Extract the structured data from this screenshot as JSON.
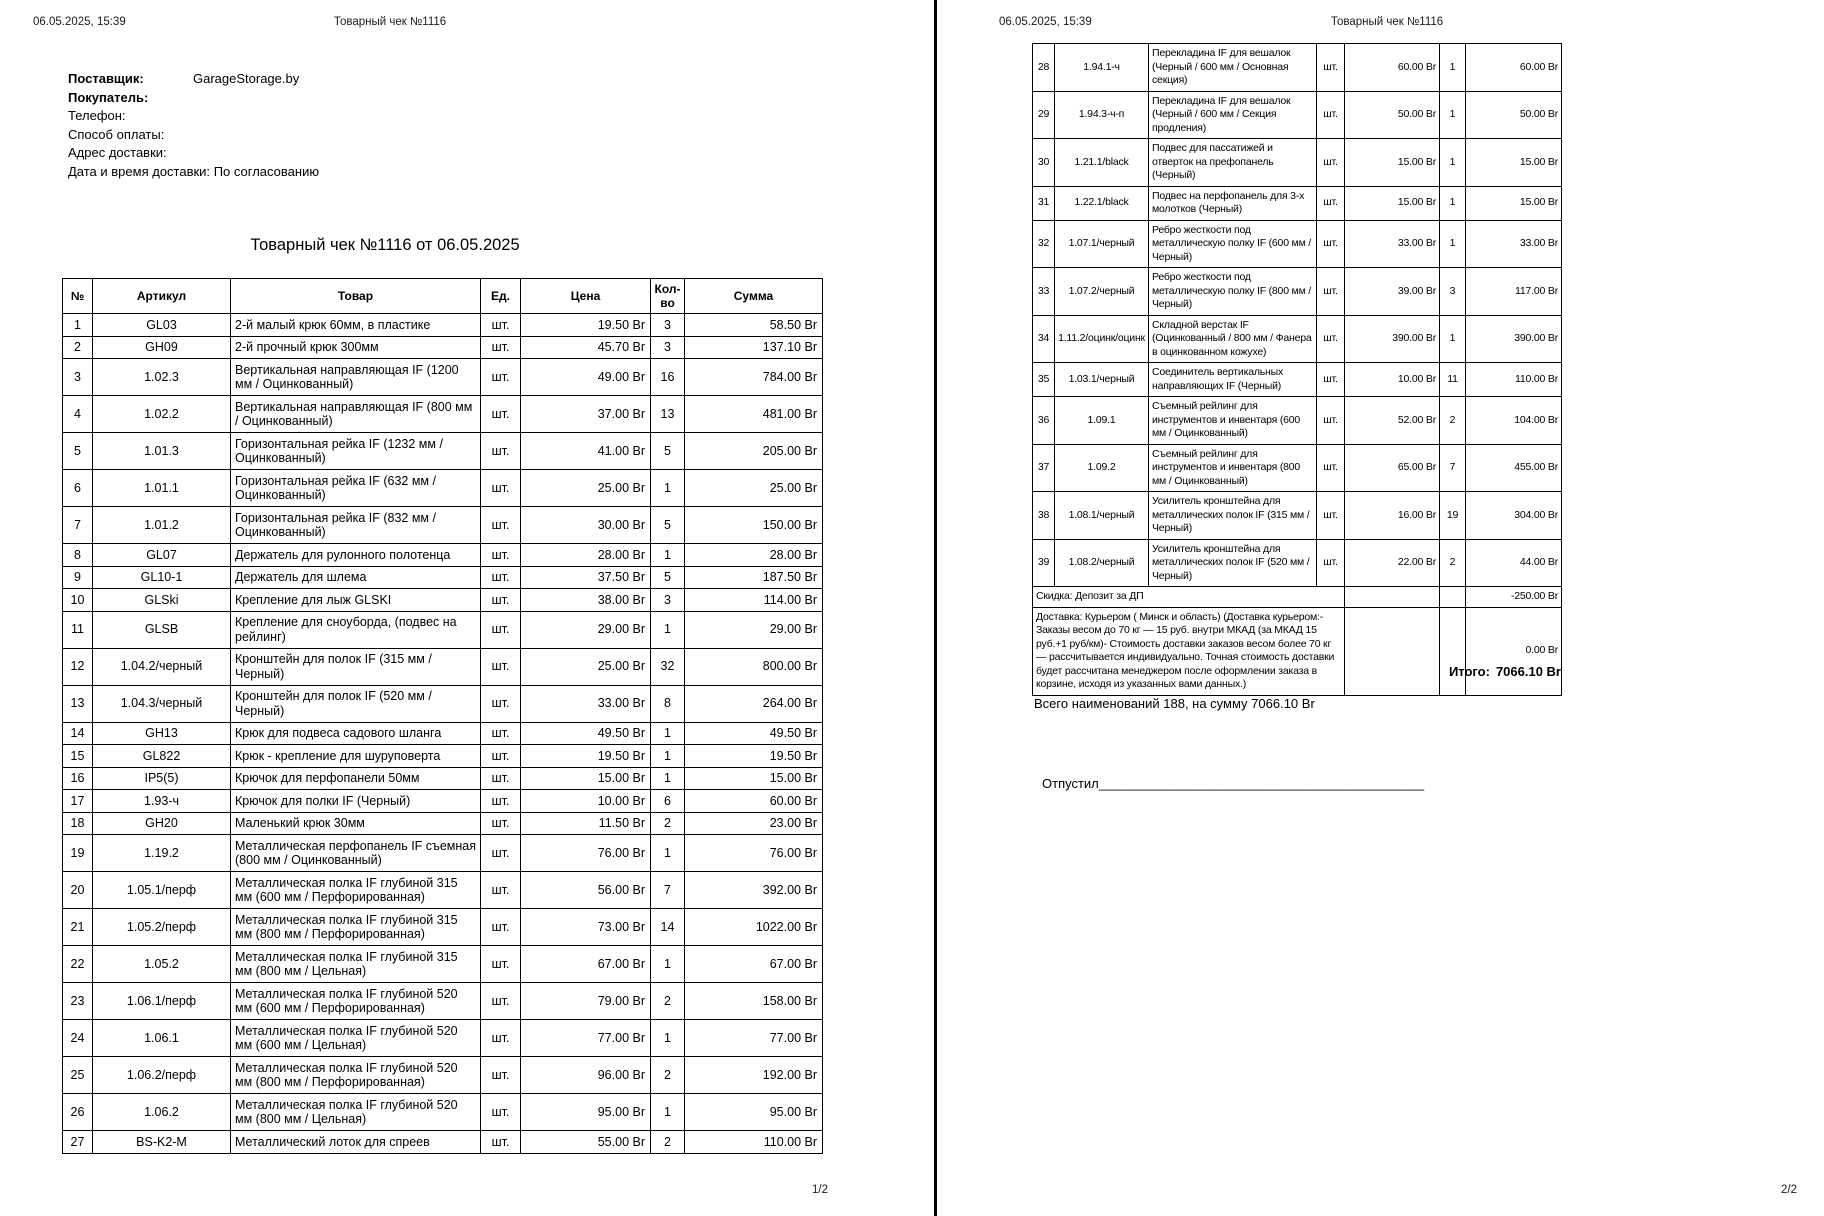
{
  "doc": {
    "datetime": "06.05.2025, 15:39",
    "header_title": "Товарный чек №1116",
    "page1_footer": "1/2",
    "page2_footer": "2/2"
  },
  "info": {
    "supplier_label": "Поставщик:",
    "supplier_value": "GarageStorage.by",
    "buyer_label": "Покупатель:",
    "buyer_value": "",
    "phone_label": "Телефон:",
    "phone_value": "",
    "payment_label": "Способ оплаты:",
    "payment_value": "",
    "address_label": "Адрес доставки:",
    "address_value": "",
    "delivery_dt_label": "Дата и время доставки:",
    "delivery_dt_value": "По согласованию"
  },
  "title": "Товарный чек №1116 от 06.05.2025",
  "table": {
    "headers": [
      "№",
      "Артикул",
      "Товар",
      "Ед.",
      "Цена",
      "Кол-во",
      "Сумма"
    ],
    "rows_page1": [
      [
        "1",
        "GL03",
        "2-й малый крюк 60мм, в пластике",
        "шт.",
        "19.50 Br",
        "3",
        "58.50 Br"
      ],
      [
        "2",
        "GH09",
        "2-й прочный крюк 300мм",
        "шт.",
        "45.70 Br",
        "3",
        "137.10 Br"
      ],
      [
        "3",
        "1.02.3",
        "Вертикальная направляющая IF (1200 мм / Оцинкованный)",
        "шт.",
        "49.00 Br",
        "16",
        "784.00 Br"
      ],
      [
        "4",
        "1.02.2",
        "Вертикальная направляющая IF (800 мм / Оцинкованный)",
        "шт.",
        "37.00 Br",
        "13",
        "481.00 Br"
      ],
      [
        "5",
        "1.01.3",
        "Горизонтальная рейка IF (1232 мм / Оцинкованный)",
        "шт.",
        "41.00 Br",
        "5",
        "205.00 Br"
      ],
      [
        "6",
        "1.01.1",
        "Горизонтальная рейка IF (632 мм / Оцинкованный)",
        "шт.",
        "25.00 Br",
        "1",
        "25.00 Br"
      ],
      [
        "7",
        "1.01.2",
        "Горизонтальная рейка IF (832 мм / Оцинкованный)",
        "шт.",
        "30.00 Br",
        "5",
        "150.00 Br"
      ],
      [
        "8",
        "GL07",
        "Держатель для рулонного полотенца",
        "шт.",
        "28.00 Br",
        "1",
        "28.00 Br"
      ],
      [
        "9",
        "GL10-1",
        "Держатель для шлема",
        "шт.",
        "37.50 Br",
        "5",
        "187.50 Br"
      ],
      [
        "10",
        "GLSki",
        "Крепление для лыж GLSKI",
        "шт.",
        "38.00 Br",
        "3",
        "114.00 Br"
      ],
      [
        "11",
        "GLSB",
        "Крепление для сноуборда, (подвес на рейлинг)",
        "шт.",
        "29.00 Br",
        "1",
        "29.00 Br"
      ],
      [
        "12",
        "1.04.2/черный",
        "Кронштейн для полок IF (315 мм / Черный)",
        "шт.",
        "25.00 Br",
        "32",
        "800.00 Br"
      ],
      [
        "13",
        "1.04.3/черный",
        "Кронштейн для полок IF (520 мм / Черный)",
        "шт.",
        "33.00 Br",
        "8",
        "264.00 Br"
      ],
      [
        "14",
        "GH13",
        "Крюк для подвеса садового шланга",
        "шт.",
        "49.50 Br",
        "1",
        "49.50 Br"
      ],
      [
        "15",
        "GL822",
        "Крюк - крепление для шуруповерта",
        "шт.",
        "19.50 Br",
        "1",
        "19.50 Br"
      ],
      [
        "16",
        "IP5(5)",
        "Крючок для перфопанели 50мм",
        "шт.",
        "15.00 Br",
        "1",
        "15.00 Br"
      ],
      [
        "17",
        "1.93-ч",
        "Крючок для полки IF (Черный)",
        "шт.",
        "10.00 Br",
        "6",
        "60.00 Br"
      ],
      [
        "18",
        "GH20",
        "Маленький крюк 30мм",
        "шт.",
        "11.50 Br",
        "2",
        "23.00 Br"
      ],
      [
        "19",
        "1.19.2",
        "Металлическая перфопанель IF съемная (800 мм / Оцинкованный)",
        "шт.",
        "76.00 Br",
        "1",
        "76.00 Br"
      ],
      [
        "20",
        "1.05.1/перф",
        "Металлическая полка IF глубиной 315 мм (600 мм / Перфорированная)",
        "шт.",
        "56.00 Br",
        "7",
        "392.00 Br"
      ],
      [
        "21",
        "1.05.2/перф",
        "Металлическая полка IF глубиной 315 мм (800 мм / Перфорированная)",
        "шт.",
        "73.00 Br",
        "14",
        "1022.00 Br"
      ],
      [
        "22",
        "1.05.2",
        "Металлическая полка IF глубиной 315 мм (800 мм / Цельная)",
        "шт.",
        "67.00 Br",
        "1",
        "67.00 Br"
      ],
      [
        "23",
        "1.06.1/перф",
        "Металлическая полка IF глубиной 520 мм (600 мм / Перфорированная)",
        "шт.",
        "79.00 Br",
        "2",
        "158.00 Br"
      ],
      [
        "24",
        "1.06.1",
        "Металлическая полка IF глубиной 520 мм (600 мм / Цельная)",
        "шт.",
        "77.00 Br",
        "1",
        "77.00 Br"
      ],
      [
        "25",
        "1.06.2/перф",
        "Металлическая полка IF глубиной 520 мм (800 мм / Перфорированная)",
        "шт.",
        "96.00 Br",
        "2",
        "192.00 Br"
      ],
      [
        "26",
        "1.06.2",
        "Металлическая полка IF глубиной 520 мм (800 мм / Цельная)",
        "шт.",
        "95.00 Br",
        "1",
        "95.00 Br"
      ],
      [
        "27",
        "BS-K2-M",
        "Металлический лоток для спреев",
        "шт.",
        "55.00 Br",
        "2",
        "110.00 Br"
      ]
    ],
    "rows_page2": [
      [
        "28",
        "1.94.1-ч",
        "Перекладина IF для вешалок (Черный / 600 мм / Основная секция)",
        "шт.",
        "60.00 Br",
        "1",
        "60.00 Br"
      ],
      [
        "29",
        "1.94.3-ч-п",
        "Перекладина IF для вешалок (Черный / 600 мм / Секция продления)",
        "шт.",
        "50.00 Br",
        "1",
        "50.00 Br"
      ],
      [
        "30",
        "1.21.1/black",
        "Подвес для пассатижей и отверток на префопанель (Черный)",
        "шт.",
        "15.00 Br",
        "1",
        "15.00 Br"
      ],
      [
        "31",
        "1.22.1/black",
        "Подвес на перфопанель для 3-х молотков (Черный)",
        "шт.",
        "15.00 Br",
        "1",
        "15.00 Br"
      ],
      [
        "32",
        "1.07.1/черный",
        "Ребро жесткости под металлическую полку IF (600 мм / Черный)",
        "шт.",
        "33.00 Br",
        "1",
        "33.00 Br"
      ],
      [
        "33",
        "1.07.2/черный",
        "Ребро жесткости под металлическую полку IF (800 мм / Черный)",
        "шт.",
        "39.00 Br",
        "3",
        "117.00 Br"
      ],
      [
        "34",
        "1.11.2/оцинк/оцинк",
        "Складной верстак IF (Оцинкованный / 800 мм / Фанера в оцинкованном кожухе)",
        "шт.",
        "390.00 Br",
        "1",
        "390.00 Br"
      ],
      [
        "35",
        "1.03.1/черный",
        "Соединитель вертикальных направляющих IF (Черный)",
        "шт.",
        "10.00 Br",
        "11",
        "110.00 Br"
      ],
      [
        "36",
        "1.09.1",
        "Съемный рейлинг для инструментов и инвентаря (600 мм / Оцинкованный)",
        "шт.",
        "52.00 Br",
        "2",
        "104.00 Br"
      ],
      [
        "37",
        "1.09.2",
        "Съемный рейлинг для инструментов и инвентаря (800 мм / Оцинкованный)",
        "шт.",
        "65.00 Br",
        "7",
        "455.00 Br"
      ],
      [
        "38",
        "1.08.1/черный",
        "Усилитель кронштейна для металлических полок IF (315 мм / Черный)",
        "шт.",
        "16.00 Br",
        "19",
        "304.00 Br"
      ],
      [
        "39",
        "1.08.2/черный",
        "Усилитель кронштейна для металлических полок IF (520 мм / Черный)",
        "шт.",
        "22.00 Br",
        "2",
        "44.00 Br"
      ]
    ],
    "discount": {
      "label": "Скидка: Депозит за ДП",
      "value": "-250.00 Br"
    },
    "delivery": {
      "label": "Доставка: Курьером ( Минск и область) (Доставка курьером:- Заказы весом до 70 кг — 15 руб. внутри МКАД (за МКАД 15 руб.+1 руб/км)- Стоимость доставки заказов весом более 70 кг — рассчитывается индивидуально. Точная стоимость доставки будет рассчитана менеджером после оформлении заказа в корзине, исходя из указанных вами данных.)",
      "value": "0.00 Br"
    }
  },
  "totals": {
    "itogo_label": "Итого:",
    "itogo_value": "7066.10 Br",
    "summary": "Всего наименований 188, на сумму 7066.10 Br",
    "released": "Отпустил_____________________________________________"
  }
}
